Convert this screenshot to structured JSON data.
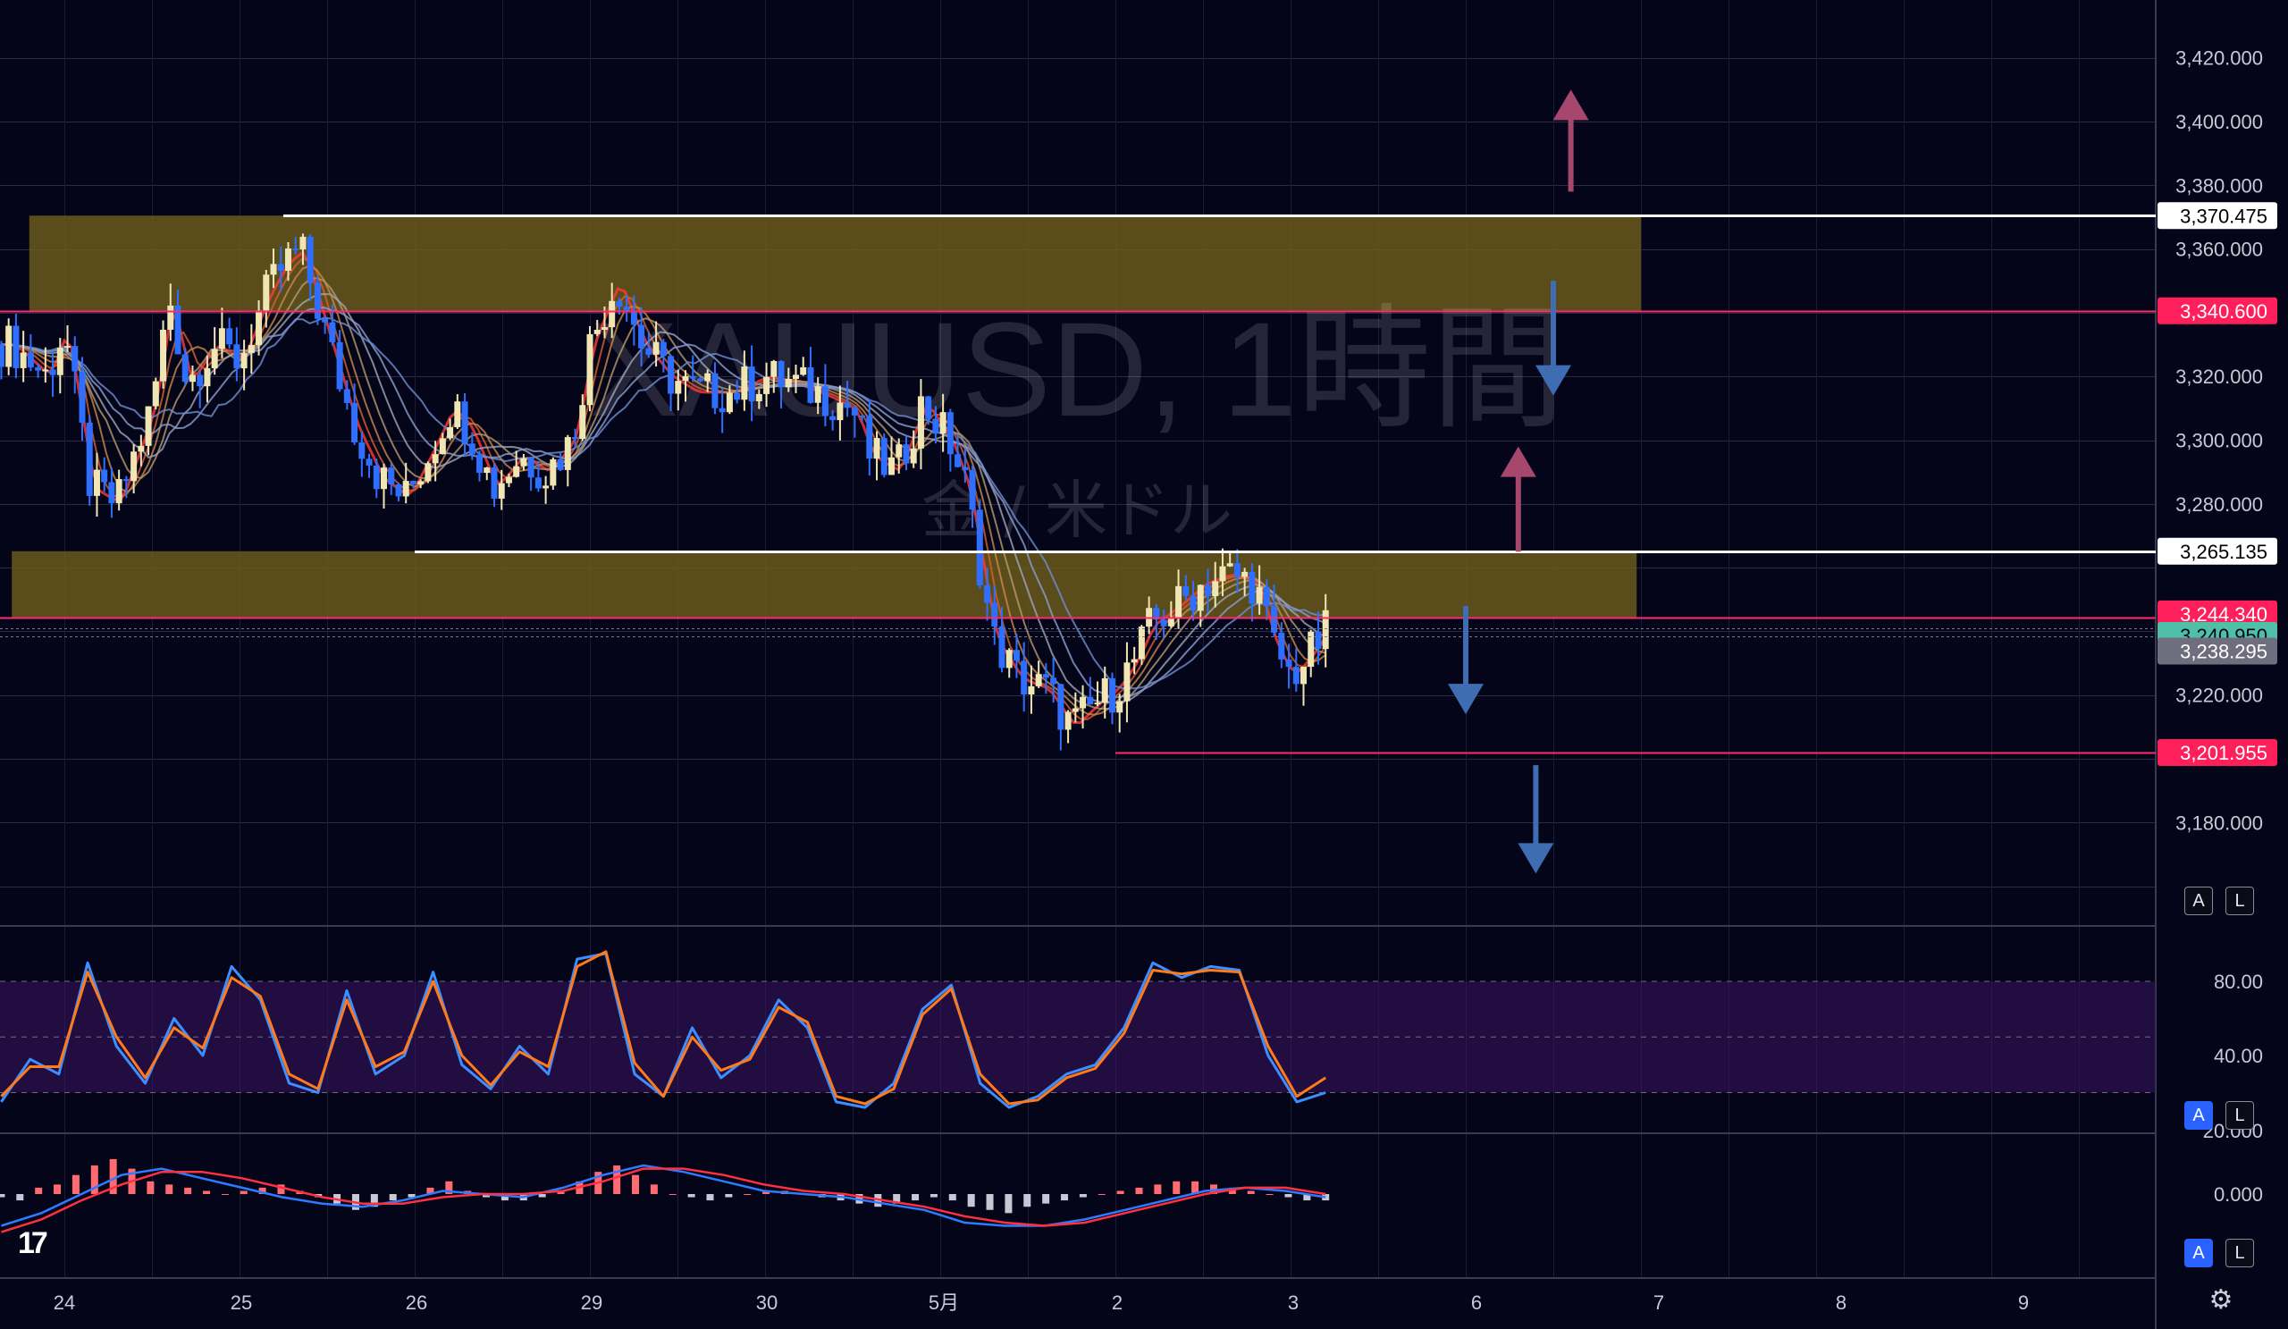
{
  "watermark": {
    "symbol": "XAUUSD, 1時間",
    "description": "金 / 米ドル"
  },
  "buttons": {
    "main_auto": "A",
    "main_log": "L",
    "osc_auto": "A",
    "osc_log": "L",
    "macd_auto": "A",
    "macd_log": "L"
  },
  "logo_text": "17",
  "colors": {
    "background": "#05051a",
    "zone": "#6b5a1c",
    "up_candle": "#f0e6b4",
    "down_candle": "#2f6fff",
    "red_line": "#ff2a6d",
    "white_line": "#ffffff",
    "arrow_up": "#a8476e",
    "arrow_down": "#3f6db3",
    "stoch_k": "#3d8eff",
    "stoch_d": "#ff7a1a",
    "macd_line": "#2e7bff",
    "signal_line": "#ff3040"
  },
  "icons": [
    "tradingview-logo-icon",
    "settings-gear-icon"
  ],
  "chart_data": [
    {
      "type": "candlestick",
      "symbol": "XAUUSD",
      "timeframe": "1時間",
      "x_labels": [
        "24",
        "25",
        "26",
        "29",
        "30",
        "5月",
        "2",
        "3",
        "6",
        "7",
        "8",
        "9"
      ],
      "y_ticks": [
        "3,420.000",
        "3,400.000",
        "3,380.000",
        "3,360.000",
        "3,320.000",
        "3,300.000",
        "3,280.000",
        "3,220.000",
        "3,180.000"
      ],
      "ylim": [
        3160,
        3440
      ],
      "price_tags": [
        {
          "label": "3,370.475",
          "value": 3370.475,
          "style": "white"
        },
        {
          "label": "3,340.600",
          "value": 3340.6,
          "style": "red"
        },
        {
          "label": "3,265.135",
          "value": 3265.135,
          "style": "white"
        },
        {
          "label": "3,244.340",
          "value": 3244.34,
          "style": "red"
        },
        {
          "label": "3,240.950",
          "value": 3240.95,
          "style": "teal"
        },
        {
          "label": "3,238.295",
          "value": 3238.295,
          "style": "grey"
        },
        {
          "label": "3,201.955",
          "value": 3201.955,
          "style": "red"
        }
      ],
      "zones": [
        {
          "from_day": -0.2,
          "to_day": 9.0,
          "low": 3340.6,
          "high": 3370.475
        },
        {
          "from_day": -0.3,
          "to_day": 9.0,
          "low": 3244.34,
          "high": 3265.135
        }
      ],
      "lines": [
        {
          "value": 3370.475,
          "from_day": 1.25,
          "style": "white"
        },
        {
          "value": 3340.6,
          "from_day": -0.5,
          "style": "red"
        },
        {
          "value": 3265.135,
          "from_day": 2.0,
          "style": "white"
        },
        {
          "value": 3244.34,
          "from_day": -0.5,
          "style": "red"
        },
        {
          "value": 3201.955,
          "from_day": 6.0,
          "style": "red"
        }
      ],
      "arrows": [
        {
          "direction": "up",
          "day": 8.6,
          "from": 3378,
          "to": 3410
        },
        {
          "direction": "down",
          "day": 8.5,
          "from": 3350,
          "to": 3314
        },
        {
          "direction": "up",
          "day": 8.3,
          "from": 3265,
          "to": 3298
        },
        {
          "direction": "down",
          "day": 8.0,
          "from": 3248,
          "to": 3214
        },
        {
          "direction": "down",
          "day": 8.4,
          "from": 3198,
          "to": 3164
        }
      ],
      "path": [
        [
          -0.3,
          3330
        ],
        [
          -0.1,
          3320
        ],
        [
          0.0,
          3335
        ],
        [
          0.15,
          3285
        ],
        [
          0.3,
          3280
        ],
        [
          0.5,
          3310
        ],
        [
          0.6,
          3345
        ],
        [
          0.7,
          3318
        ],
        [
          0.85,
          3330
        ],
        [
          1.0,
          3325
        ],
        [
          1.15,
          3345
        ],
        [
          1.25,
          3355
        ],
        [
          1.35,
          3360
        ],
        [
          1.5,
          3332
        ],
        [
          1.65,
          3305
        ],
        [
          1.8,
          3288
        ],
        [
          1.95,
          3282
        ],
        [
          2.1,
          3298
        ],
        [
          2.2,
          3310
        ],
        [
          2.3,
          3305
        ],
        [
          2.45,
          3285
        ],
        [
          2.6,
          3295
        ],
        [
          2.75,
          3290
        ],
        [
          2.9,
          3300
        ],
        [
          3.0,
          3330
        ],
        [
          3.15,
          3350
        ],
        [
          3.3,
          3330
        ],
        [
          3.45,
          3320
        ],
        [
          3.6,
          3315
        ],
        [
          3.8,
          3315
        ],
        [
          4.0,
          3320
        ],
        [
          4.15,
          3318
        ],
        [
          4.3,
          3315
        ],
        [
          4.5,
          3310
        ],
        [
          4.6,
          3295
        ],
        [
          4.75,
          3290
        ],
        [
          4.9,
          3312
        ],
        [
          5.05,
          3300
        ],
        [
          5.15,
          3285
        ],
        [
          5.3,
          3238
        ],
        [
          5.45,
          3225
        ],
        [
          5.6,
          3222
        ],
        [
          5.75,
          3210
        ],
        [
          5.9,
          3218
        ],
        [
          6.0,
          3222
        ],
        [
          6.1,
          3230
        ],
        [
          6.2,
          3242
        ],
        [
          6.35,
          3248
        ],
        [
          6.5,
          3255
        ],
        [
          6.65,
          3258
        ],
        [
          6.8,
          3255
        ],
        [
          6.9,
          3236
        ],
        [
          7.0,
          3226
        ],
        [
          7.1,
          3232
        ],
        [
          7.2,
          3240
        ]
      ]
    },
    {
      "type": "line",
      "name_hidden": true,
      "ylim": [
        0,
        100
      ],
      "y_ticks": [
        "80.00",
        "40.00"
      ],
      "band": [
        20,
        80
      ],
      "series": [
        {
          "color": "stoch_k",
          "values": [
            15,
            38,
            30,
            90,
            45,
            25,
            60,
            40,
            88,
            70,
            25,
            20,
            75,
            30,
            40,
            85,
            35,
            22,
            45,
            30,
            92,
            95,
            30,
            18,
            55,
            28,
            40,
            70,
            55,
            15,
            12,
            25,
            65,
            78,
            25,
            12,
            18,
            30,
            35,
            55,
            90,
            82,
            88,
            86,
            40,
            15,
            20
          ]
        },
        {
          "color": "stoch_d",
          "values": [
            18,
            34,
            34,
            85,
            50,
            28,
            55,
            44,
            82,
            72,
            30,
            22,
            70,
            34,
            42,
            80,
            40,
            24,
            42,
            34,
            88,
            96,
            36,
            18,
            50,
            32,
            38,
            66,
            58,
            18,
            14,
            22,
            62,
            76,
            30,
            14,
            16,
            28,
            33,
            52,
            86,
            84,
            86,
            85,
            45,
            18,
            28
          ]
        }
      ]
    },
    {
      "type": "bar+line",
      "name_hidden": true,
      "ylim": [
        -12,
        25
      ],
      "y_ticks": [
        "20.000",
        "0.000"
      ],
      "histogram": [
        -1,
        -2,
        2,
        3,
        6,
        9,
        11,
        8,
        4,
        3,
        2,
        1,
        0,
        1,
        2,
        3,
        1,
        -1,
        -3,
        -5,
        -4,
        -2,
        -1,
        2,
        4,
        1,
        -1,
        -2,
        -2,
        -1,
        1,
        4,
        7,
        9,
        6,
        3,
        0,
        -1,
        -2,
        -1,
        0,
        1,
        1,
        0,
        -1,
        -2,
        -3,
        -4,
        -3,
        -2,
        -1,
        -2,
        -4,
        -5,
        -6,
        -4,
        -3,
        -2,
        -1,
        0,
        1,
        2,
        3,
        4,
        4,
        3,
        2,
        1,
        0,
        -1,
        -2,
        -2
      ],
      "series": [
        {
          "color": "macd_line",
          "values": [
            -10,
            -6,
            0,
            6,
            8,
            5,
            2,
            -1,
            -3,
            -4,
            -2,
            1,
            0,
            -1,
            2,
            6,
            9,
            7,
            4,
            1,
            0,
            -1,
            -3,
            -5,
            -9,
            -10,
            -10,
            -8,
            -5,
            -2,
            1,
            2,
            1,
            -1
          ]
        },
        {
          "color": "signal_line",
          "values": [
            -12,
            -8,
            -2,
            3,
            7,
            7,
            5,
            2,
            -1,
            -3,
            -3,
            -1,
            0,
            0,
            1,
            4,
            8,
            8,
            6,
            3,
            1,
            0,
            -2,
            -4,
            -7,
            -9,
            -10,
            -9,
            -6,
            -3,
            0,
            2,
            2,
            0
          ]
        }
      ]
    }
  ]
}
